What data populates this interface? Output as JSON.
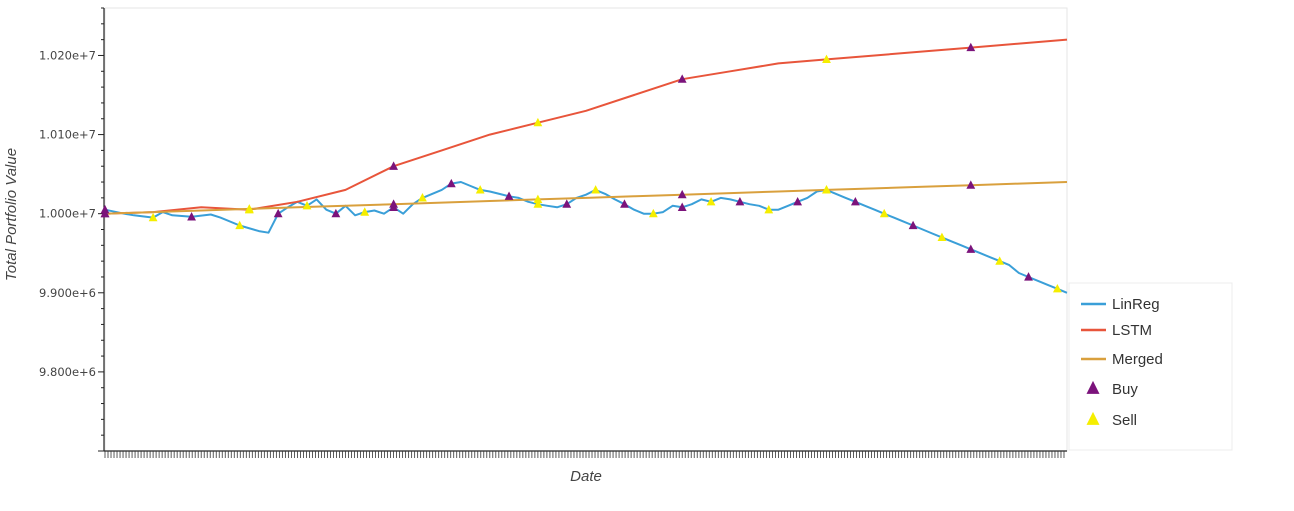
{
  "chart_data": {
    "type": "line",
    "xlabel": "Date",
    "ylabel": "Total Portfolio Value",
    "ylim": [
      9700000,
      10260000
    ],
    "yticks": [
      {
        "value": 9800000,
        "label": "9.800e+6"
      },
      {
        "value": 9900000,
        "label": "9.900e+6"
      },
      {
        "value": 10000000,
        "label": "1.000e+7"
      },
      {
        "value": 10100000,
        "label": "1.010e+7"
      },
      {
        "value": 10200000,
        "label": "1.020e+7"
      }
    ],
    "x_range": [
      0,
      100
    ],
    "x_tick_count": 320,
    "x_tick_labels_visible": false,
    "legend_position": "bottom-right",
    "series": [
      {
        "name": "LinReg",
        "color": "#3a9fd8",
        "points": [
          [
            0,
            10005000
          ],
          [
            2,
            10000000
          ],
          [
            3,
            9998000
          ],
          [
            5,
            9995000
          ],
          [
            6,
            10002000
          ],
          [
            7,
            9998000
          ],
          [
            9,
            9996000
          ],
          [
            11,
            9999000
          ],
          [
            12,
            9995000
          ],
          [
            14,
            9985000
          ],
          [
            16,
            9978000
          ],
          [
            17,
            9976000
          ],
          [
            18,
            10000000
          ],
          [
            19,
            10008000
          ],
          [
            20,
            10015000
          ],
          [
            21,
            10010000
          ],
          [
            22,
            10018000
          ],
          [
            23,
            10005000
          ],
          [
            24,
            10000000
          ],
          [
            25,
            10010000
          ],
          [
            26,
            9998000
          ],
          [
            27,
            10002000
          ],
          [
            28,
            10004000
          ],
          [
            29,
            10000000
          ],
          [
            30,
            10008000
          ],
          [
            31,
            10000000
          ],
          [
            32,
            10012000
          ],
          [
            33,
            10020000
          ],
          [
            34,
            10025000
          ],
          [
            35,
            10030000
          ],
          [
            36,
            10038000
          ],
          [
            37,
            10040000
          ],
          [
            38,
            10035000
          ],
          [
            39,
            10030000
          ],
          [
            40,
            10028000
          ],
          [
            41,
            10025000
          ],
          [
            42,
            10022000
          ],
          [
            43,
            10020000
          ],
          [
            44,
            10015000
          ],
          [
            45,
            10012000
          ],
          [
            46,
            10010000
          ],
          [
            47,
            10008000
          ],
          [
            48,
            10012000
          ],
          [
            49,
            10020000
          ],
          [
            50,
            10024000
          ],
          [
            51,
            10030000
          ],
          [
            52,
            10025000
          ],
          [
            53,
            10018000
          ],
          [
            54,
            10012000
          ],
          [
            55,
            10005000
          ],
          [
            56,
            10000000
          ],
          [
            57,
            10000000
          ],
          [
            58,
            10002000
          ],
          [
            59,
            10010000
          ],
          [
            60,
            10008000
          ],
          [
            61,
            10012000
          ],
          [
            62,
            10018000
          ],
          [
            63,
            10015000
          ],
          [
            64,
            10020000
          ],
          [
            65,
            10018000
          ],
          [
            66,
            10015000
          ],
          [
            67,
            10012000
          ],
          [
            68,
            10010000
          ],
          [
            69,
            10005000
          ],
          [
            70,
            10005000
          ],
          [
            71,
            10010000
          ],
          [
            72,
            10015000
          ],
          [
            73,
            10020000
          ],
          [
            74,
            10028000
          ],
          [
            75,
            10030000
          ],
          [
            76,
            10025000
          ],
          [
            77,
            10020000
          ],
          [
            78,
            10015000
          ],
          [
            79,
            10010000
          ],
          [
            80,
            10005000
          ],
          [
            81,
            10000000
          ],
          [
            82,
            9995000
          ],
          [
            83,
            9990000
          ],
          [
            84,
            9985000
          ],
          [
            85,
            9980000
          ],
          [
            86,
            9975000
          ],
          [
            87,
            9970000
          ],
          [
            88,
            9965000
          ],
          [
            89,
            9960000
          ],
          [
            90,
            9955000
          ],
          [
            91,
            9950000
          ],
          [
            92,
            9945000
          ],
          [
            93,
            9940000
          ],
          [
            94,
            9935000
          ],
          [
            95,
            9925000
          ],
          [
            96,
            9920000
          ],
          [
            97,
            9915000
          ],
          [
            98,
            9910000
          ],
          [
            99,
            9905000
          ],
          [
            100,
            9900000
          ]
        ]
      },
      {
        "name": "LSTM",
        "color": "#e8553b",
        "points": [
          [
            0,
            10000000
          ],
          [
            5,
            10002000
          ],
          [
            10,
            10008000
          ],
          [
            15,
            10005000
          ],
          [
            20,
            10015000
          ],
          [
            25,
            10030000
          ],
          [
            30,
            10060000
          ],
          [
            35,
            10080000
          ],
          [
            40,
            10100000
          ],
          [
            45,
            10115000
          ],
          [
            50,
            10130000
          ],
          [
            55,
            10150000
          ],
          [
            60,
            10170000
          ],
          [
            65,
            10180000
          ],
          [
            70,
            10190000
          ],
          [
            75,
            10195000
          ],
          [
            80,
            10200000
          ],
          [
            85,
            10205000
          ],
          [
            90,
            10210000
          ],
          [
            95,
            10215000
          ],
          [
            100,
            10220000
          ]
        ]
      },
      {
        "name": "Merged",
        "color": "#d9a03d",
        "points": [
          [
            0,
            10000000
          ],
          [
            5,
            10002000
          ],
          [
            10,
            10004000
          ],
          [
            15,
            10006000
          ],
          [
            20,
            10008000
          ],
          [
            25,
            10010000
          ],
          [
            30,
            10012000
          ],
          [
            35,
            10014000
          ],
          [
            40,
            10016000
          ],
          [
            45,
            10018000
          ],
          [
            50,
            10020000
          ],
          [
            55,
            10022000
          ],
          [
            60,
            10024000
          ],
          [
            65,
            10026000
          ],
          [
            70,
            10028000
          ],
          [
            75,
            10030000
          ],
          [
            80,
            10032000
          ],
          [
            85,
            10034000
          ],
          [
            90,
            10036000
          ],
          [
            95,
            10038000
          ],
          [
            100,
            10040000
          ]
        ]
      }
    ],
    "markers": [
      {
        "name": "Buy",
        "shape": "triangle",
        "color": "#7b137b"
      },
      {
        "name": "Sell",
        "shape": "triangle",
        "color": "#f5ee00"
      }
    ]
  }
}
